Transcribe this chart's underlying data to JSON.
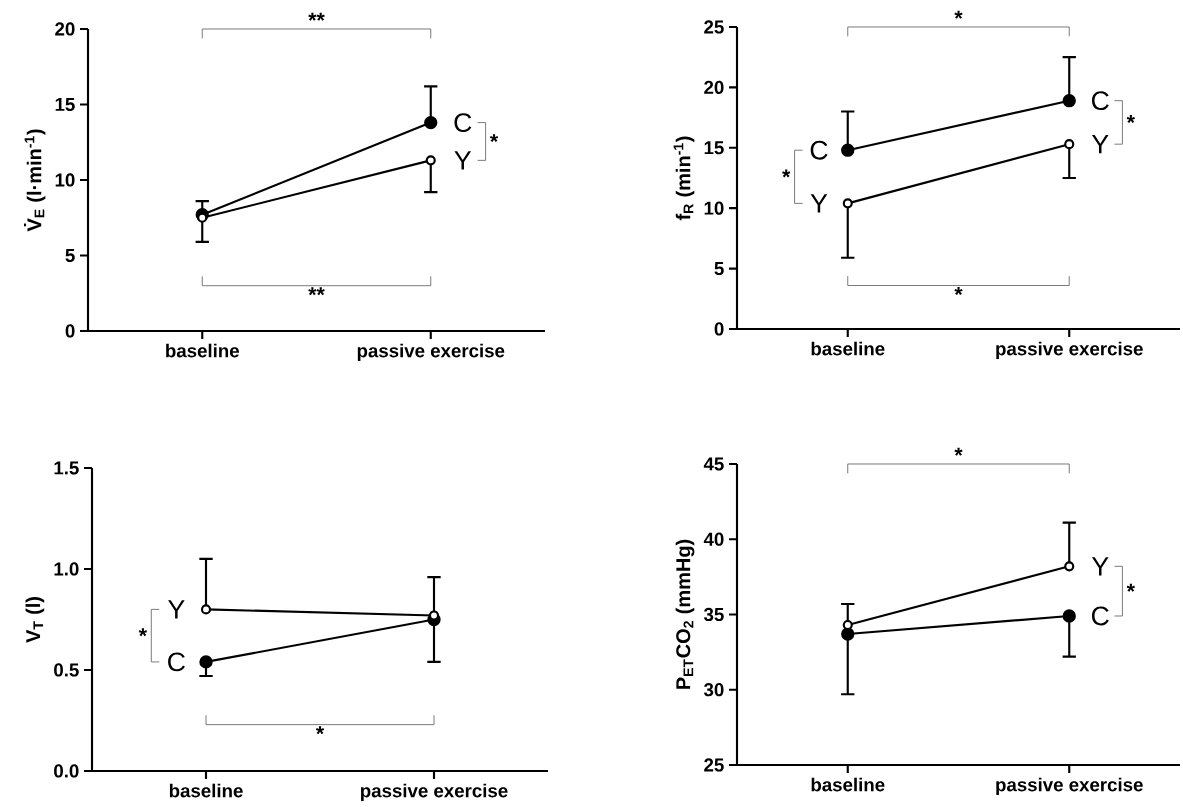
{
  "chart_data": [
    {
      "type": "line",
      "categories": [
        "baseline",
        "passive exercise"
      ],
      "ylabel": "V̇$_{E}$ (l·min$^{-1}$)",
      "ylim": [
        0,
        20
      ],
      "yticks": [
        0,
        5,
        10,
        15,
        20
      ],
      "marker": "circle",
      "legend": "right",
      "annotations": [
        "**",
        "**",
        "*"
      ],
      "series": [
        {
          "name": "C",
          "color": "#000000",
          "values": [
            7.7,
            13.8
          ],
          "errors": [
            [
              7.7,
              8.6
            ],
            [
              13.8,
              16.2
            ]
          ]
        },
        {
          "name": "Y",
          "color": "#000000",
          "values": [
            7.5,
            11.3
          ],
          "errors": [
            [
              5.9,
              7.5
            ],
            [
              9.2,
              11.3
            ]
          ]
        }
      ]
    },
    {
      "type": "line",
      "categories": [
        "baseline",
        "passive exercise"
      ],
      "ylabel": "f$_{R}$ (min$^{-1}$)",
      "ylim": [
        0,
        25
      ],
      "yticks": [
        0,
        5,
        10,
        15,
        20,
        25
      ],
      "marker": "circle",
      "legend": "left",
      "annotations": [
        "*",
        "*",
        "*",
        "*"
      ],
      "series": [
        {
          "name": "C",
          "color": "#000000",
          "values": [
            14.8,
            18.9
          ],
          "errors": [
            [
              14.8,
              18.0
            ],
            [
              18.9,
              22.5
            ]
          ]
        },
        {
          "name": "Y",
          "color": "#000000",
          "values": [
            10.4,
            15.3
          ],
          "errors": [
            [
              5.9,
              10.4
            ],
            [
              12.5,
              15.3
            ]
          ]
        }
      ]
    },
    {
      "type": "line",
      "categories": [
        "baseline",
        "passive exercise"
      ],
      "ylabel": "V$_{T}$ (l)",
      "ylim": [
        0,
        1.5
      ],
      "yticks": [
        {
          "value": 0,
          "label": "0.0"
        },
        0.5,
        {
          "value": 1,
          "label": "1.0"
        },
        1.5
      ],
      "marker": "circle",
      "legend": "left",
      "annotations": [
        "*",
        "*"
      ],
      "series": [
        {
          "name": "C",
          "color": "#000000",
          "values": [
            0.54,
            0.75
          ],
          "errors": [
            [
              0.47,
              0.54
            ],
            [
              0.54,
              0.75
            ]
          ]
        },
        {
          "name": "Y",
          "color": "#000000",
          "values": [
            0.8,
            0.77
          ],
          "errors": [
            [
              0.8,
              1.05
            ],
            [
              0.77,
              0.96
            ]
          ]
        }
      ]
    },
    {
      "type": "line",
      "categories": [
        "baseline",
        "passive exercise"
      ],
      "ylabel": "P$_{ET}$CO$_{2}$ (mmHg)",
      "ylim": [
        25,
        45
      ],
      "yticks": [
        25,
        30,
        35,
        40,
        45
      ],
      "marker": "circle",
      "legend": "right",
      "annotations": [
        "*",
        "*"
      ],
      "series": [
        {
          "name": "C",
          "color": "#000000",
          "values": [
            33.7,
            34.9
          ],
          "errors": [
            [
              29.7,
              33.7
            ],
            [
              32.2,
              34.9
            ]
          ]
        },
        {
          "name": "Y",
          "color": "#000000",
          "values": [
            34.3,
            38.2
          ],
          "errors": [
            [
              34.3,
              35.7
            ],
            [
              38.2,
              41.1
            ]
          ]
        }
      ]
    }
  ]
}
